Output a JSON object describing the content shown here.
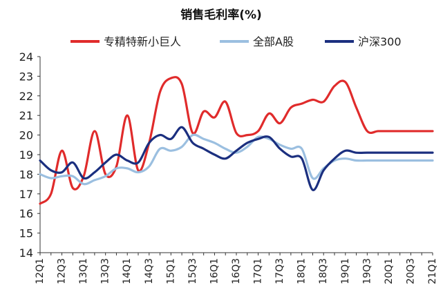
{
  "chart_data": {
    "type": "line",
    "title": "销售毛利率(%)",
    "xlabel": "",
    "ylabel": "",
    "ylim": [
      14,
      24
    ],
    "yticks": [
      14,
      15,
      16,
      17,
      18,
      19,
      20,
      21,
      22,
      23,
      24
    ],
    "grid": false,
    "legend_position": "top",
    "x": [
      "12Q1",
      "12Q2",
      "12Q3",
      "12Q4",
      "13Q1",
      "13Q2",
      "13Q3",
      "13Q4",
      "14Q1",
      "14Q2",
      "14Q3",
      "14Q4",
      "15Q1",
      "15Q2",
      "15Q3",
      "15Q4",
      "16Q1",
      "16Q2",
      "16Q3",
      "16Q4",
      "17Q1",
      "17Q2",
      "17Q3",
      "17Q4",
      "18Q1",
      "18Q2",
      "18Q3",
      "18Q4",
      "19Q1",
      "19Q2",
      "19Q3",
      "19Q4",
      "20Q1",
      "20Q2",
      "20Q3",
      "20Q4",
      "21Q1"
    ],
    "x_tick_labels": [
      "12Q1",
      "12Q3",
      "13Q1",
      "13Q3",
      "14Q1",
      "14Q3",
      "15Q1",
      "15Q3",
      "16Q1",
      "16Q3",
      "17Q1",
      "17Q3",
      "18Q1",
      "18Q3",
      "19Q1",
      "19Q3",
      "20Q1",
      "20Q3",
      "21Q1"
    ],
    "series": [
      {
        "name": "专精特新小巨人",
        "color": "#e02b2b",
        "values": [
          16.5,
          17.0,
          19.2,
          17.3,
          17.9,
          20.2,
          18.0,
          18.4,
          21.0,
          18.2,
          19.6,
          22.2,
          22.9,
          22.6,
          20.1,
          21.2,
          20.9,
          21.7,
          20.1,
          20.0,
          20.2,
          21.1,
          20.6,
          21.4,
          21.6,
          21.8,
          21.7,
          22.5,
          22.7,
          21.4,
          20.2,
          20.2,
          20.2,
          20.2,
          20.2,
          20.2,
          20.2
        ]
      },
      {
        "name": "全部A股",
        "color": "#9bbfe0",
        "values": [
          18.0,
          17.8,
          17.9,
          17.9,
          17.5,
          17.7,
          17.9,
          18.3,
          18.3,
          18.1,
          18.4,
          19.3,
          19.2,
          19.4,
          20.0,
          19.8,
          19.6,
          19.3,
          19.1,
          19.4,
          19.9,
          19.8,
          19.5,
          19.3,
          19.3,
          17.8,
          18.3,
          18.7,
          18.8,
          18.7,
          18.7,
          18.7,
          18.7,
          18.7,
          18.7,
          18.7,
          18.7
        ]
      },
      {
        "name": "沪深300",
        "color": "#1b2f7f",
        "values": [
          18.7,
          18.2,
          18.1,
          18.6,
          17.8,
          18.1,
          18.6,
          19.0,
          18.7,
          18.6,
          19.6,
          20.0,
          19.8,
          20.4,
          19.6,
          19.3,
          19.0,
          18.8,
          19.2,
          19.6,
          19.8,
          19.9,
          19.3,
          18.9,
          18.8,
          17.2,
          18.2,
          18.8,
          19.2,
          19.1,
          19.1,
          19.1,
          19.1,
          19.1,
          19.1,
          19.1,
          19.1
        ]
      }
    ]
  }
}
